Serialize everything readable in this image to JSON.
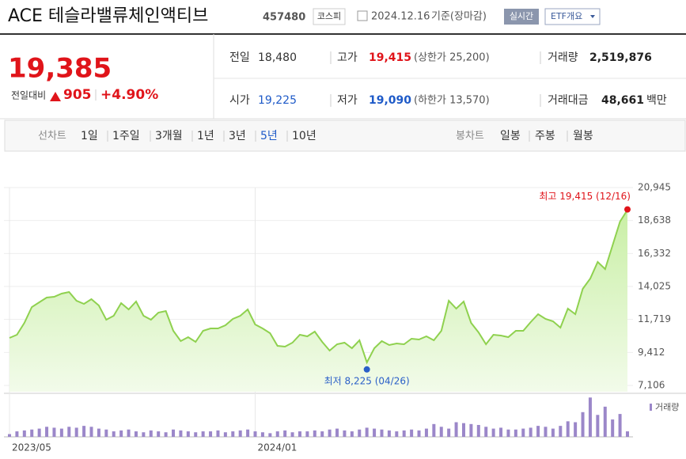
{
  "header": {
    "title": "ACE 테슬라밸류체인액티브",
    "code": "457480",
    "market": "코스피",
    "date": "2024.12.16",
    "basis": "기준(장마감)",
    "realtime": "실시간",
    "etf_info": "ETF개요"
  },
  "price": {
    "current": "19,385",
    "change_label": "전일대비",
    "change": "905",
    "change_pct": "+4.90%"
  },
  "stats": {
    "prev_close": {
      "label": "전일",
      "value": "18,480"
    },
    "open": {
      "label": "시가",
      "value": "19,225"
    },
    "high": {
      "label": "고가",
      "value": "19,415",
      "limit": "(상한가 25,200)"
    },
    "low": {
      "label": "저가",
      "value": "19,090",
      "limit": "(하한가 13,570)"
    },
    "volume": {
      "label": "거래량",
      "value": "2,519,876"
    },
    "amount": {
      "label": "거래대금",
      "value": "48,661",
      "unit": "백만"
    }
  },
  "tabs": {
    "line_label": "선차트",
    "line": [
      "1일",
      "1주일",
      "3개월",
      "1년",
      "3년",
      "5년",
      "10년"
    ],
    "line_active": 5,
    "candle_label": "봉차트",
    "candle": [
      "일봉",
      "주봉",
      "월봉"
    ]
  },
  "chart_data": {
    "type": "area",
    "categories": [
      "2023/05",
      null,
      null,
      null,
      null,
      null,
      null,
      null,
      null,
      null,
      null,
      null,
      null,
      null,
      null,
      null,
      null,
      null,
      null,
      null,
      null,
      null,
      null,
      null,
      null,
      null,
      null,
      null,
      null,
      null,
      null,
      null,
      null,
      "2024/01",
      null,
      null,
      null,
      null,
      null,
      null,
      null,
      null,
      null,
      null,
      null,
      null,
      null,
      null,
      null,
      null,
      null,
      null,
      null,
      null,
      null,
      null,
      null,
      null,
      null,
      null,
      null,
      null,
      null,
      null,
      null,
      null,
      null,
      null,
      null,
      null,
      null,
      null,
      null,
      null,
      null,
      null,
      null,
      null,
      null,
      null,
      null,
      null,
      null,
      null
    ],
    "values": [
      10427,
      10648,
      11478,
      12586,
      12918,
      13250,
      13305,
      13527,
      13637,
      13029,
      12807,
      13139,
      12696,
      11700,
      11977,
      12862,
      12420,
      12973,
      11977,
      11700,
      12198,
      12309,
      10925,
      10205,
      10482,
      10150,
      10925,
      11091,
      11091,
      11312,
      11755,
      11977,
      12420,
      11368,
      11091,
      10759,
      9873,
      9818,
      10094,
      10648,
      10537,
      10869,
      10150,
      9541,
      9984,
      10094,
      9707,
      10261,
      8711,
      9707,
      10205,
      9928,
      10039,
      9984,
      10371,
      10316,
      10537,
      10261,
      10925,
      13029,
      12475,
      12973,
      11478,
      10814,
      9984,
      10648,
      10593,
      10482,
      10925,
      10925,
      11534,
      12087,
      11755,
      11589,
      11146,
      12475,
      12087,
      13859,
      14579,
      15741,
      15243,
      16904,
      18565,
      19385
    ],
    "color": "#8fd14f",
    "ylim": [
      7106,
      20945
    ],
    "yticks": [
      {
        "value": 7106,
        "label": "7,106"
      },
      {
        "value": 9412,
        "label": "9,412"
      },
      {
        "value": 11719,
        "label": "11,719"
      },
      {
        "value": 14025,
        "label": "14,025"
      },
      {
        "value": 16332,
        "label": "16,332"
      },
      {
        "value": 18638,
        "label": "18,638"
      },
      {
        "value": 20945,
        "label": "20,945"
      }
    ],
    "grid": true,
    "annotations": [
      {
        "text": "최고 19,415 (12/16)",
        "value": 19415,
        "color": "#e0141a"
      },
      {
        "text": "최저 8,225 (04/26)",
        "value": 8225,
        "color": "#2a5fc8"
      }
    ],
    "volume": {
      "name": "거래량",
      "color": "#9b87c9",
      "ylim": [
        0,
        45
      ],
      "values": [
        3,
        6,
        7,
        8,
        9,
        11,
        10,
        9,
        11,
        10,
        12,
        11,
        9,
        8,
        6,
        7,
        8,
        6,
        5,
        7,
        6,
        5,
        8,
        7,
        6,
        5,
        6,
        6,
        7,
        5,
        6,
        7,
        8,
        6,
        5,
        4,
        6,
        7,
        5,
        6,
        6,
        7,
        6,
        8,
        9,
        7,
        6,
        8,
        10,
        9,
        8,
        7,
        6,
        7,
        8,
        7,
        9,
        14,
        11,
        9,
        16,
        15,
        14,
        13,
        11,
        9,
        10,
        8,
        8,
        9,
        10,
        12,
        11,
        9,
        12,
        17,
        16,
        27,
        43,
        24,
        33,
        19,
        25,
        6
      ]
    }
  }
}
